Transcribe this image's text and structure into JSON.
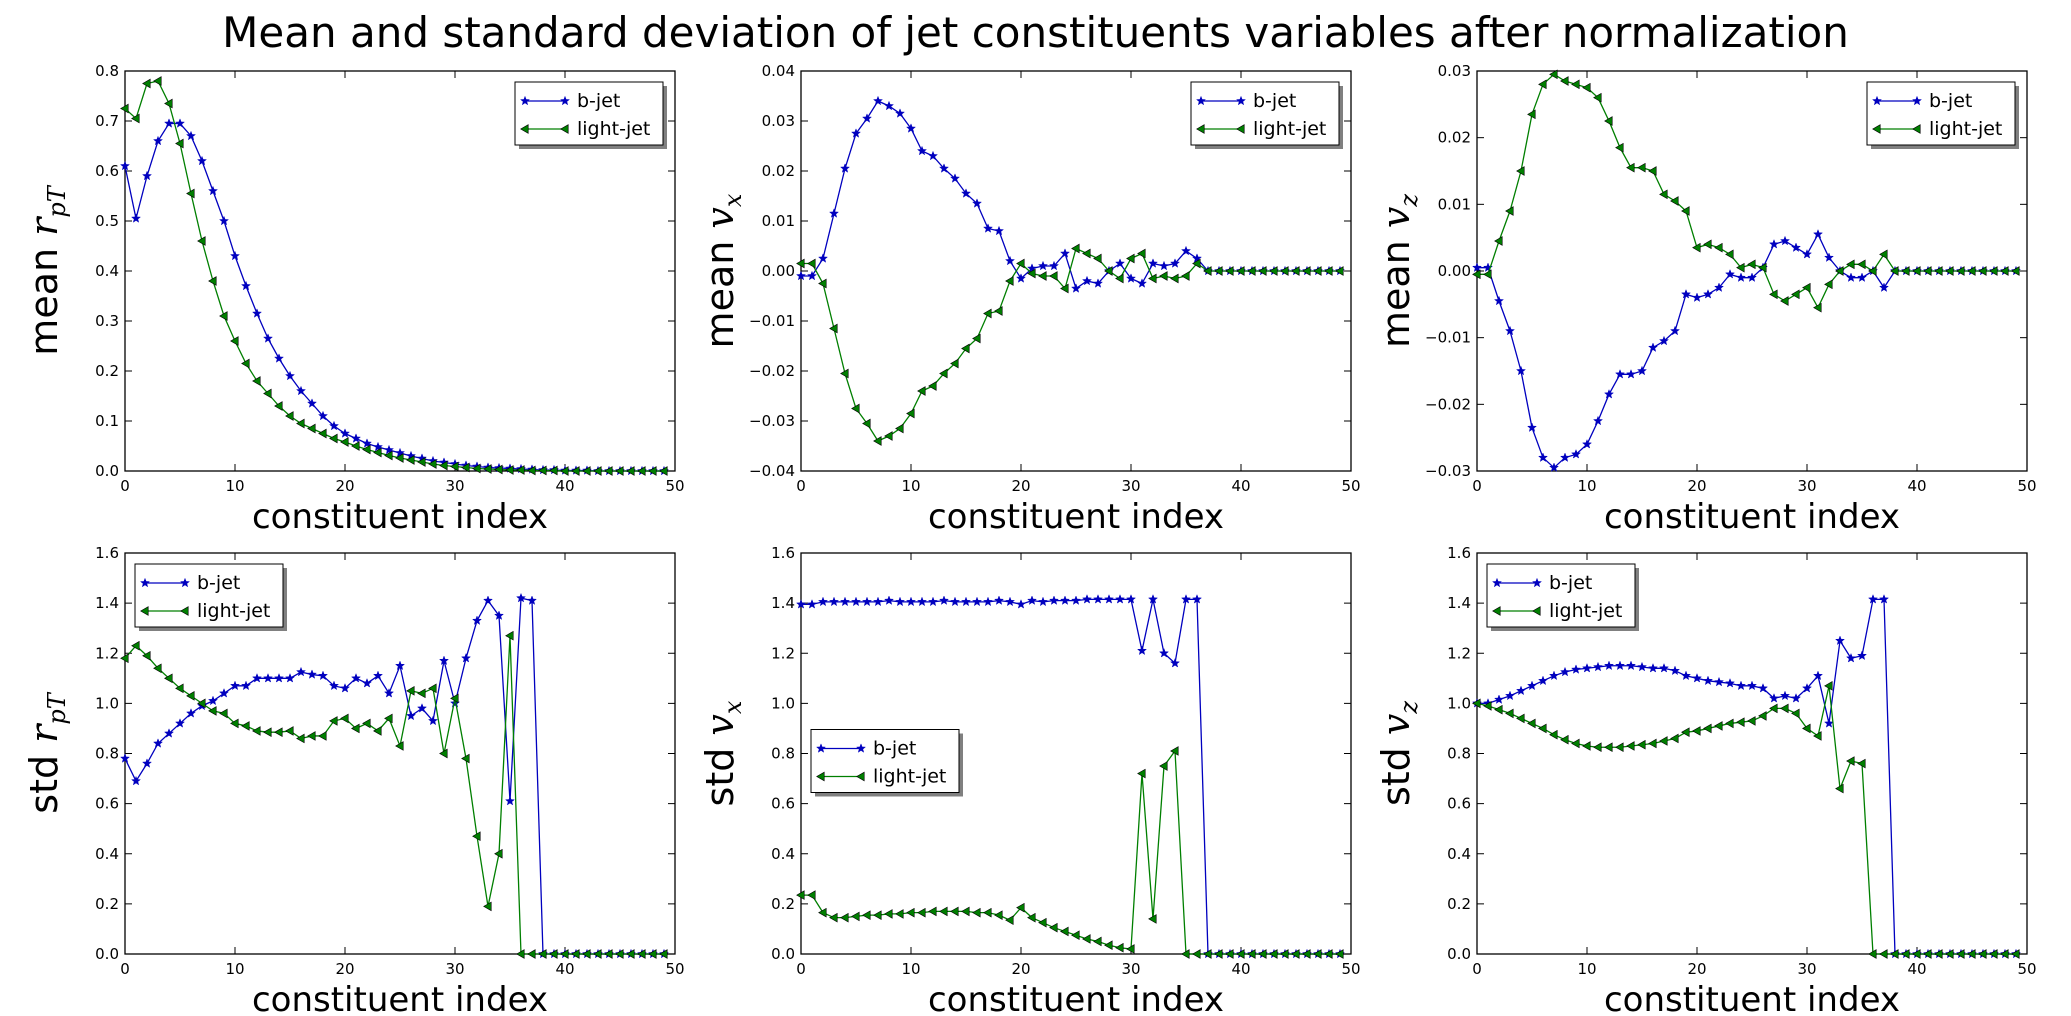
{
  "figure_title": "Mean and standard deviation of jet constituents variables after normalization",
  "chart_data": [
    {
      "type": "line",
      "id": "mean_rpt",
      "ylabel_prefix": "mean",
      "ylabel_var": "r",
      "ylabel_sub": "pT",
      "xlabel": "constituent index",
      "xlim": [
        0,
        50
      ],
      "ylim": [
        0.0,
        0.8
      ],
      "xticks": [
        "0",
        "10",
        "20",
        "30",
        "40",
        "50"
      ],
      "yticks": [
        "0.0",
        "0.1",
        "0.2",
        "0.3",
        "0.4",
        "0.5",
        "0.6",
        "0.7",
        "0.8"
      ],
      "legend_position": "upper right",
      "series": [
        {
          "name": "b-jet",
          "color": "#0000bf",
          "marker": "star",
          "values": [
            0.61,
            0.505,
            0.59,
            0.66,
            0.695,
            0.695,
            0.67,
            0.62,
            0.56,
            0.5,
            0.43,
            0.37,
            0.315,
            0.265,
            0.225,
            0.19,
            0.16,
            0.135,
            0.11,
            0.09,
            0.075,
            0.065,
            0.055,
            0.048,
            0.042,
            0.036,
            0.03,
            0.025,
            0.02,
            0.017,
            0.014,
            0.011,
            0.009,
            0.007,
            0.006,
            0.005,
            0.004,
            0.003,
            0.002,
            0.002,
            0.001,
            0.001,
            0.001,
            0.0,
            0.0,
            0.0,
            0.0,
            0.0,
            0.0,
            0.0
          ]
        },
        {
          "name": "light-jet",
          "color": "#007f00",
          "marker": "triangle-left",
          "values": [
            0.725,
            0.705,
            0.775,
            0.78,
            0.735,
            0.655,
            0.555,
            0.46,
            0.38,
            0.31,
            0.26,
            0.215,
            0.18,
            0.155,
            0.13,
            0.11,
            0.095,
            0.085,
            0.075,
            0.065,
            0.058,
            0.05,
            0.043,
            0.037,
            0.031,
            0.026,
            0.022,
            0.018,
            0.014,
            0.011,
            0.009,
            0.007,
            0.005,
            0.004,
            0.003,
            0.002,
            0.002,
            0.001,
            0.001,
            0.001,
            0.0,
            0.0,
            0.0,
            0.0,
            0.0,
            0.0,
            0.0,
            0.0,
            0.0,
            0.0
          ]
        }
      ]
    },
    {
      "type": "line",
      "id": "mean_vx",
      "ylabel_prefix": "mean",
      "ylabel_var": "v",
      "ylabel_sub": "x",
      "xlabel": "constituent index",
      "xlim": [
        0,
        50
      ],
      "ylim": [
        -0.04,
        0.04
      ],
      "xticks": [
        "0",
        "10",
        "20",
        "30",
        "40",
        "50"
      ],
      "yticks": [
        "−0.04",
        "−0.03",
        "−0.02",
        "−0.01",
        "0.00",
        "0.01",
        "0.02",
        "0.03",
        "0.04"
      ],
      "legend_position": "upper right",
      "series": [
        {
          "name": "b-jet",
          "color": "#0000bf",
          "marker": "star",
          "values": [
            -0.001,
            -0.001,
            0.0025,
            0.0115,
            0.0205,
            0.0275,
            0.0305,
            0.034,
            0.033,
            0.0315,
            0.0285,
            0.024,
            0.023,
            0.0205,
            0.0185,
            0.0155,
            0.0135,
            0.0085,
            0.008,
            0.002,
            -0.0015,
            0.0005,
            0.001,
            0.001,
            0.0035,
            -0.0035,
            -0.002,
            -0.0025,
            0.0,
            0.0015,
            -0.0015,
            -0.0025,
            0.0015,
            0.001,
            0.0015,
            0.004,
            0.0025,
            0.0,
            0.0,
            0.0,
            0.0,
            0.0,
            0.0,
            0.0,
            0.0,
            0.0,
            0.0,
            0.0,
            0.0,
            0.0
          ]
        },
        {
          "name": "light-jet",
          "color": "#007f00",
          "marker": "triangle-left",
          "values": [
            0.0015,
            0.0015,
            -0.0025,
            -0.0115,
            -0.0205,
            -0.0275,
            -0.0305,
            -0.034,
            -0.033,
            -0.0315,
            -0.0285,
            -0.024,
            -0.023,
            -0.0205,
            -0.0185,
            -0.0155,
            -0.0135,
            -0.0085,
            -0.008,
            -0.002,
            0.0015,
            -0.0005,
            -0.001,
            -0.001,
            -0.0035,
            0.0045,
            0.0035,
            0.0025,
            0.0,
            -0.0015,
            0.0025,
            0.0035,
            -0.0015,
            -0.001,
            -0.0015,
            -0.001,
            0.0015,
            0.0,
            0.0,
            0.0,
            0.0,
            0.0,
            0.0,
            0.0,
            0.0,
            0.0,
            0.0,
            0.0,
            0.0,
            0.0
          ]
        }
      ]
    },
    {
      "type": "line",
      "id": "mean_vz",
      "ylabel_prefix": "mean",
      "ylabel_var": "v",
      "ylabel_sub": "z",
      "xlabel": "constituent index",
      "xlim": [
        0,
        50
      ],
      "ylim": [
        -0.03,
        0.03
      ],
      "xticks": [
        "0",
        "10",
        "20",
        "30",
        "40",
        "50"
      ],
      "yticks": [
        "−0.03",
        "−0.02",
        "−0.01",
        "0.00",
        "0.01",
        "0.02",
        "0.03"
      ],
      "legend_position": "upper right",
      "series": [
        {
          "name": "b-jet",
          "color": "#0000bf",
          "marker": "star",
          "values": [
            0.0005,
            0.0005,
            -0.0045,
            -0.009,
            -0.015,
            -0.0235,
            -0.028,
            -0.0295,
            -0.028,
            -0.0275,
            -0.026,
            -0.0225,
            -0.0185,
            -0.0155,
            -0.0155,
            -0.015,
            -0.0115,
            -0.0105,
            -0.009,
            -0.0035,
            -0.004,
            -0.0035,
            -0.0025,
            -0.0005,
            -0.001,
            -0.001,
            0.0005,
            0.004,
            0.0045,
            0.0035,
            0.0025,
            0.0055,
            0.002,
            0.0,
            -0.001,
            -0.001,
            0.0,
            -0.0025,
            0.0,
            0.0,
            0.0,
            0.0,
            0.0,
            0.0,
            0.0,
            0.0,
            0.0,
            0.0,
            0.0,
            0.0
          ]
        },
        {
          "name": "light-jet",
          "color": "#007f00",
          "marker": "triangle-left",
          "values": [
            -0.0005,
            -0.0005,
            0.0045,
            0.009,
            0.015,
            0.0235,
            0.028,
            0.0295,
            0.0285,
            0.028,
            0.0275,
            0.026,
            0.0225,
            0.0185,
            0.0155,
            0.0155,
            0.015,
            0.0115,
            0.0105,
            0.009,
            0.0035,
            0.004,
            0.0035,
            0.0025,
            0.0005,
            0.001,
            0.0005,
            -0.0035,
            -0.0045,
            -0.0035,
            -0.0025,
            -0.0055,
            -0.002,
            0.0,
            0.001,
            0.001,
            0.0,
            0.0025,
            0.0,
            0.0,
            0.0,
            0.0,
            0.0,
            0.0,
            0.0,
            0.0,
            0.0,
            0.0,
            0.0,
            0.0
          ]
        }
      ]
    },
    {
      "type": "line",
      "id": "std_rpt",
      "ylabel_prefix": "std",
      "ylabel_var": "r",
      "ylabel_sub": "pT",
      "xlabel": "constituent index",
      "xlim": [
        0,
        50
      ],
      "ylim": [
        0.0,
        1.6
      ],
      "xticks": [
        "0",
        "10",
        "20",
        "30",
        "40",
        "50"
      ],
      "yticks": [
        "0.0",
        "0.2",
        "0.4",
        "0.6",
        "0.8",
        "1.0",
        "1.2",
        "1.4",
        "1.6"
      ],
      "legend_position": "upper left",
      "series": [
        {
          "name": "b-jet",
          "color": "#0000bf",
          "marker": "star",
          "values": [
            0.78,
            0.69,
            0.76,
            0.84,
            0.88,
            0.92,
            0.96,
            0.99,
            1.01,
            1.04,
            1.07,
            1.07,
            1.1,
            1.1,
            1.1,
            1.1,
            1.125,
            1.115,
            1.11,
            1.07,
            1.06,
            1.1,
            1.08,
            1.11,
            1.04,
            1.15,
            0.95,
            0.98,
            0.93,
            1.17,
            1.0,
            1.18,
            1.33,
            1.41,
            1.35,
            0.61,
            1.42,
            1.41,
            0.0,
            0.0,
            0.0,
            0.0,
            0.0,
            0.0,
            0.0,
            0.0,
            0.0,
            0.0,
            0.0,
            0.0
          ]
        },
        {
          "name": "light-jet",
          "color": "#007f00",
          "marker": "triangle-left",
          "values": [
            1.18,
            1.23,
            1.19,
            1.14,
            1.1,
            1.06,
            1.03,
            1.0,
            0.97,
            0.96,
            0.92,
            0.91,
            0.89,
            0.885,
            0.885,
            0.89,
            0.86,
            0.87,
            0.87,
            0.93,
            0.94,
            0.9,
            0.92,
            0.89,
            0.94,
            0.83,
            1.05,
            1.04,
            1.06,
            0.8,
            1.02,
            0.78,
            0.47,
            0.19,
            0.4,
            1.27,
            0.0,
            0.0,
            0.0,
            0.0,
            0.0,
            0.0,
            0.0,
            0.0,
            0.0,
            0.0,
            0.0,
            0.0,
            0.0,
            0.0
          ]
        }
      ]
    },
    {
      "type": "line",
      "id": "std_vx",
      "ylabel_prefix": "std",
      "ylabel_var": "v",
      "ylabel_sub": "x",
      "xlabel": "constituent index",
      "xlim": [
        0,
        50
      ],
      "ylim": [
        0.0,
        1.6
      ],
      "xticks": [
        "0",
        "10",
        "20",
        "30",
        "40",
        "50"
      ],
      "yticks": [
        "0.0",
        "0.2",
        "0.4",
        "0.6",
        "0.8",
        "1.0",
        "1.2",
        "1.4",
        "1.6"
      ],
      "legend_position": "center left",
      "series": [
        {
          "name": "b-jet",
          "color": "#0000bf",
          "marker": "star",
          "values": [
            1.395,
            1.395,
            1.405,
            1.405,
            1.405,
            1.405,
            1.405,
            1.405,
            1.41,
            1.405,
            1.405,
            1.405,
            1.405,
            1.41,
            1.405,
            1.405,
            1.405,
            1.405,
            1.41,
            1.405,
            1.395,
            1.41,
            1.405,
            1.41,
            1.41,
            1.41,
            1.415,
            1.415,
            1.415,
            1.415,
            1.415,
            1.21,
            1.415,
            1.2,
            1.16,
            1.415,
            1.415,
            0.0,
            0.0,
            0.0,
            0.0,
            0.0,
            0.0,
            0.0,
            0.0,
            0.0,
            0.0,
            0.0,
            0.0,
            0.0
          ]
        },
        {
          "name": "light-jet",
          "color": "#007f00",
          "marker": "triangle-left",
          "values": [
            0.235,
            0.235,
            0.165,
            0.145,
            0.145,
            0.15,
            0.155,
            0.155,
            0.16,
            0.16,
            0.165,
            0.165,
            0.17,
            0.17,
            0.17,
            0.17,
            0.165,
            0.165,
            0.155,
            0.135,
            0.185,
            0.145,
            0.125,
            0.105,
            0.09,
            0.075,
            0.06,
            0.05,
            0.035,
            0.025,
            0.02,
            0.72,
            0.14,
            0.75,
            0.81,
            0.0,
            0.0,
            0.0,
            0.0,
            0.0,
            0.0,
            0.0,
            0.0,
            0.0,
            0.0,
            0.0,
            0.0,
            0.0,
            0.0,
            0.0
          ]
        }
      ]
    },
    {
      "type": "line",
      "id": "std_vz",
      "ylabel_prefix": "std",
      "ylabel_var": "v",
      "ylabel_sub": "z",
      "xlabel": "constituent index",
      "xlim": [
        0,
        50
      ],
      "ylim": [
        0.0,
        1.6
      ],
      "xticks": [
        "0",
        "10",
        "20",
        "30",
        "40",
        "50"
      ],
      "yticks": [
        "0.0",
        "0.2",
        "0.4",
        "0.6",
        "0.8",
        "1.0",
        "1.2",
        "1.4",
        "1.6"
      ],
      "legend_position": "upper left",
      "series": [
        {
          "name": "b-jet",
          "color": "#0000bf",
          "marker": "star",
          "values": [
            1.0,
            1.0,
            1.015,
            1.03,
            1.05,
            1.07,
            1.09,
            1.11,
            1.125,
            1.135,
            1.14,
            1.145,
            1.15,
            1.15,
            1.15,
            1.145,
            1.14,
            1.14,
            1.13,
            1.11,
            1.1,
            1.09,
            1.085,
            1.08,
            1.07,
            1.07,
            1.06,
            1.02,
            1.03,
            1.02,
            1.06,
            1.11,
            0.92,
            1.25,
            1.18,
            1.19,
            1.415,
            1.415,
            0.0,
            0.0,
            0.0,
            0.0,
            0.0,
            0.0,
            0.0,
            0.0,
            0.0,
            0.0,
            0.0,
            0.0
          ]
        },
        {
          "name": "light-jet",
          "color": "#007f00",
          "marker": "triangle-left",
          "values": [
            1.0,
            0.99,
            0.975,
            0.96,
            0.94,
            0.92,
            0.9,
            0.875,
            0.855,
            0.84,
            0.83,
            0.825,
            0.825,
            0.825,
            0.83,
            0.835,
            0.84,
            0.85,
            0.86,
            0.885,
            0.89,
            0.9,
            0.91,
            0.92,
            0.925,
            0.93,
            0.95,
            0.98,
            0.98,
            0.96,
            0.9,
            0.87,
            1.07,
            0.66,
            0.77,
            0.76,
            0.0,
            0.0,
            0.0,
            0.0,
            0.0,
            0.0,
            0.0,
            0.0,
            0.0,
            0.0,
            0.0,
            0.0,
            0.0,
            0.0
          ]
        }
      ]
    }
  ]
}
